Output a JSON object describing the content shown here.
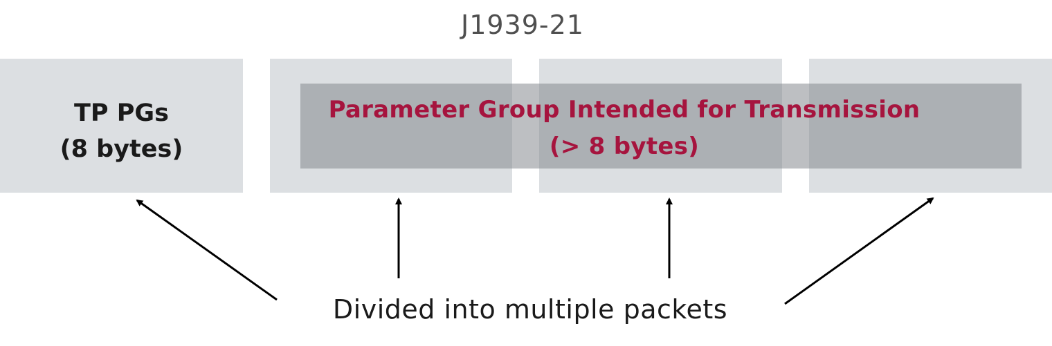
{
  "title": "J1939-21",
  "tp_box": {
    "line1": "TP PGs",
    "line2": "(8 bytes)"
  },
  "pg_overlay": {
    "line1": "Parameter Group Intended for Transmission",
    "line2": "(> 8 bytes)"
  },
  "caption": "Divided into multiple packets",
  "colors": {
    "box_fill": "#dcdfe2",
    "overlay_fill": "#80858a",
    "accent_text": "#a6143e",
    "title_text": "#4f4f4f",
    "body_text": "#1a1a1a"
  }
}
